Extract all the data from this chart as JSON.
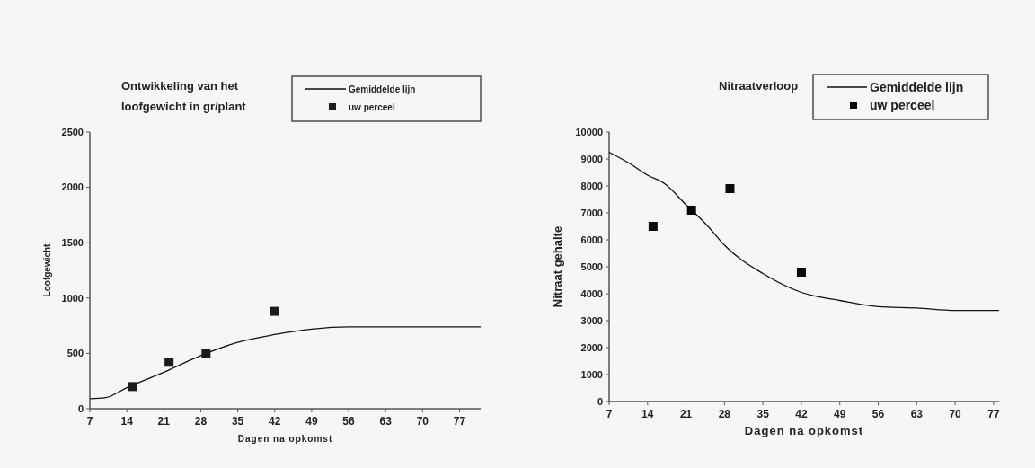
{
  "chart_data": [
    {
      "type": "line",
      "title": "Ontwikkeling van het loofgewicht in gr/plant",
      "xlabel": "Dagen na opkomst",
      "ylabel": "Loofgewicht",
      "xlim": [
        7,
        81
      ],
      "xticks": [
        7,
        14,
        21,
        28,
        35,
        42,
        49,
        56,
        63,
        70,
        77
      ],
      "ylim": [
        0,
        2500
      ],
      "yticks": [
        0,
        500,
        1000,
        1500,
        2000,
        2500
      ],
      "grid": false,
      "legend": "top right",
      "series": [
        {
          "name": "Gemiddelde lijn",
          "color": "#111111",
          "marker": "none",
          "x": [
            7,
            10,
            14,
            21,
            28,
            35,
            42,
            49,
            56,
            63,
            81
          ],
          "values": [
            90,
            100,
            190,
            330,
            480,
            600,
            670,
            720,
            740,
            740,
            740
          ]
        },
        {
          "name": "uw perceel",
          "type": "scatter",
          "color": "#1c1c1c",
          "marker": "square",
          "x": [
            15,
            22,
            29,
            42
          ],
          "values": [
            200,
            420,
            500,
            880
          ]
        }
      ]
    },
    {
      "type": "line",
      "title": "Nitraatverloop",
      "xlabel": "Dagen na opkomst",
      "ylabel": "Nitraat gehalte",
      "xlim": [
        7,
        78
      ],
      "xticks": [
        7,
        14,
        21,
        28,
        35,
        42,
        49,
        56,
        63,
        70,
        77
      ],
      "ylim": [
        0,
        10000
      ],
      "yticks": [
        0,
        1000,
        2000,
        3000,
        4000,
        5000,
        6000,
        7000,
        8000,
        9000,
        10000
      ],
      "grid": false,
      "legend": "top right",
      "series": [
        {
          "name": "Gemiddelde lijn",
          "color": "#111111",
          "marker": "none",
          "x": [
            7,
            11,
            14,
            17,
            21,
            25,
            28,
            35,
            42,
            49,
            56,
            63,
            70,
            78
          ],
          "values": [
            9250,
            8800,
            8400,
            8100,
            7300,
            6500,
            5800,
            4750,
            4050,
            3750,
            3520,
            3470,
            3380,
            3380
          ]
        },
        {
          "name": "uw perceel",
          "type": "scatter",
          "color": "#0a0a0a",
          "marker": "square",
          "x": [
            15,
            22,
            29,
            42
          ],
          "values": [
            6500,
            7100,
            7900,
            4800
          ]
        }
      ]
    }
  ]
}
